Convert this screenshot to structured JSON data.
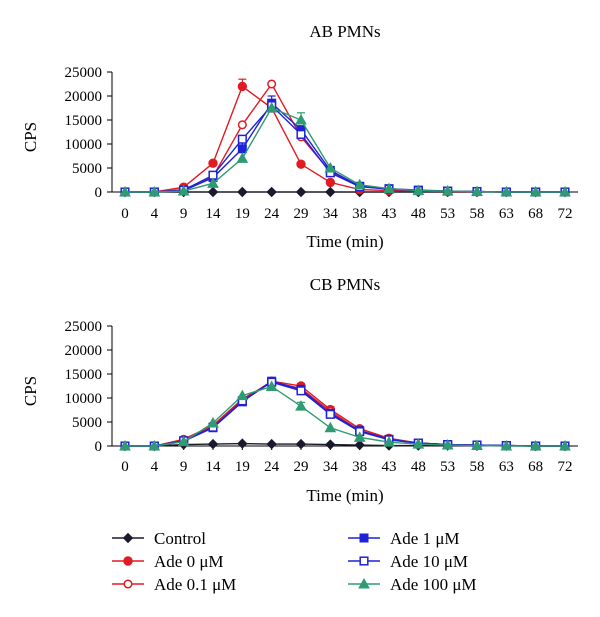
{
  "chart_data": [
    {
      "type": "line",
      "title": "AB PMNs",
      "xlabel": "Time (min)",
      "ylabel": "CPS",
      "categories": [
        "0",
        "4",
        "9",
        "14",
        "19",
        "24",
        "29",
        "34",
        "38",
        "43",
        "48",
        "53",
        "58",
        "63",
        "68",
        "72"
      ],
      "yticks": [
        "0",
        "5000",
        "10000",
        "15000",
        "20000",
        "25000"
      ],
      "ylim": [
        0,
        25000
      ],
      "grid": false,
      "series": [
        {
          "name": "Control",
          "marker": "diamond",
          "color": "#1a1a2e",
          "values": [
            0,
            0,
            0,
            0,
            0,
            0,
            0,
            0,
            0,
            0,
            0,
            0,
            0,
            0,
            0,
            0
          ]
        },
        {
          "name": "Ade 0 μM",
          "marker": "circle",
          "color": "#e11b22",
          "values": [
            0,
            0,
            1000,
            6000,
            22000,
            17500,
            5800,
            2000,
            500,
            300,
            200,
            100,
            100,
            0,
            0,
            0
          ],
          "err": [
            0,
            0,
            0,
            0,
            1500,
            0,
            0,
            0,
            0,
            0,
            0,
            0,
            0,
            0,
            0,
            0
          ]
        },
        {
          "name": "Ade 0.1 μM",
          "marker": "circle-open",
          "color": "#e11b22",
          "values": [
            0,
            0,
            500,
            3200,
            14000,
            22500,
            11500,
            4200,
            1200,
            600,
            300,
            200,
            100,
            0,
            0,
            0
          ]
        },
        {
          "name": "Ade 1 μM",
          "marker": "square",
          "color": "#1f22d6",
          "values": [
            0,
            0,
            300,
            3000,
            9000,
            18500,
            13000,
            4500,
            1200,
            700,
            400,
            200,
            100,
            0,
            0,
            0
          ],
          "err": [
            0,
            0,
            0,
            0,
            2500,
            1500,
            0,
            0,
            0,
            0,
            0,
            0,
            0,
            0,
            0,
            0
          ]
        },
        {
          "name": "Ade 10 μM",
          "marker": "square-open",
          "color": "#1f22d6",
          "values": [
            0,
            0,
            400,
            3500,
            11000,
            18000,
            12000,
            4000,
            1100,
            600,
            300,
            200,
            100,
            0,
            0,
            0
          ]
        },
        {
          "name": "Ade 100 μM",
          "marker": "triangle",
          "color": "#2e9b72",
          "values": [
            0,
            0,
            200,
            1800,
            7000,
            17500,
            15000,
            5000,
            1500,
            700,
            300,
            200,
            100,
            0,
            0,
            0
          ],
          "err": [
            0,
            0,
            0,
            0,
            0,
            0,
            1500,
            0,
            0,
            0,
            0,
            0,
            0,
            0,
            0,
            0
          ]
        }
      ]
    },
    {
      "type": "line",
      "title": "CB PMNs",
      "xlabel": "Time (min)",
      "ylabel": "CPS",
      "categories": [
        "0",
        "4",
        "9",
        "14",
        "19",
        "24",
        "29",
        "34",
        "38",
        "43",
        "48",
        "53",
        "58",
        "63",
        "68",
        "72"
      ],
      "yticks": [
        "0",
        "5000",
        "10000",
        "15000",
        "20000",
        "25000"
      ],
      "ylim": [
        0,
        25000
      ],
      "grid": false,
      "series": [
        {
          "name": "Control",
          "marker": "diamond",
          "color": "#1a1a2e",
          "values": [
            0,
            0,
            300,
            400,
            500,
            400,
            400,
            300,
            200,
            100,
            100,
            100,
            50,
            50,
            0,
            0
          ]
        },
        {
          "name": "Ade 0 μM",
          "marker": "circle",
          "color": "#e11b22",
          "values": [
            0,
            0,
            1200,
            4200,
            9500,
            13500,
            12500,
            7600,
            3600,
            1600,
            600,
            300,
            200,
            100,
            0,
            0
          ]
        },
        {
          "name": "Ade 0.1 μM",
          "marker": "circle-open",
          "color": "#e11b22",
          "values": [
            0,
            0,
            1400,
            4300,
            9800,
            13300,
            12000,
            7200,
            3200,
            1500,
            600,
            300,
            200,
            100,
            0,
            0
          ],
          "err": [
            0,
            0,
            0,
            0,
            0,
            0,
            1000,
            1000,
            0,
            0,
            0,
            0,
            0,
            0,
            0,
            0
          ]
        },
        {
          "name": "Ade 1 μM",
          "marker": "square",
          "color": "#1f22d6",
          "values": [
            0,
            0,
            1000,
            3800,
            9200,
            13500,
            11800,
            6800,
            3200,
            1400,
            600,
            300,
            200,
            100,
            0,
            0
          ]
        },
        {
          "name": "Ade 10 μM",
          "marker": "square-open",
          "color": "#1f22d6",
          "values": [
            0,
            0,
            1100,
            3900,
            9400,
            13300,
            11500,
            6600,
            3000,
            1300,
            600,
            300,
            200,
            100,
            0,
            0
          ]
        },
        {
          "name": "Ade 100 μM",
          "marker": "triangle",
          "color": "#2e9b72",
          "values": [
            0,
            0,
            900,
            4800,
            10500,
            12400,
            8300,
            3800,
            1800,
            800,
            400,
            200,
            100,
            0,
            0,
            0
          ],
          "err": [
            0,
            0,
            0,
            0,
            0,
            0,
            800,
            0,
            0,
            0,
            0,
            0,
            0,
            0,
            0,
            0
          ]
        }
      ]
    }
  ],
  "legend": {
    "entries": [
      {
        "label": "Control",
        "marker": "diamond",
        "color": "#1a1a2e"
      },
      {
        "label": "Ade 0 μM",
        "marker": "circle",
        "color": "#e11b22"
      },
      {
        "label": "Ade 0.1 μM",
        "marker": "circle-open",
        "color": "#e11b22"
      },
      {
        "label": "Ade 1 μM",
        "marker": "square",
        "color": "#1f22d6"
      },
      {
        "label": "Ade 10 μM",
        "marker": "square-open",
        "color": "#1f22d6"
      },
      {
        "label": "Ade 100 μM",
        "marker": "triangle",
        "color": "#2e9b72"
      }
    ]
  }
}
